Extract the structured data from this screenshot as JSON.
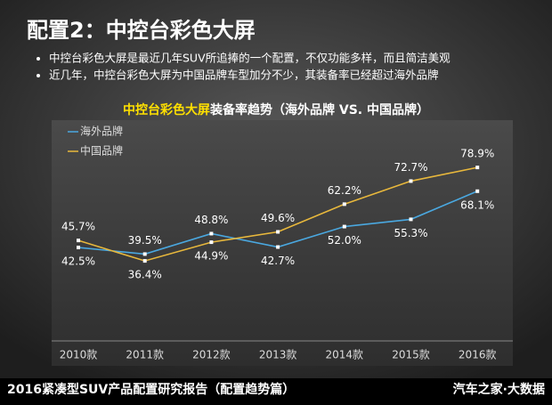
{
  "header": {
    "title": "配置2：中控台彩色大屏",
    "bullets": [
      "中控台彩色大屏是最近几年SUV所追捧的一个配置，不仅功能多样，而且简洁美观",
      "近几年，中控台彩色大屏为中国品牌车型加分不少，其装备率已经超过海外品牌"
    ]
  },
  "chart_data": {
    "type": "line",
    "title_highlight": "中控台彩色大屏",
    "title": "装备率趋势（海外品牌 VS. 中国品牌）",
    "categories": [
      "2010款",
      "2011款",
      "2012款",
      "2013款",
      "2014款",
      "2015款",
      "2016款"
    ],
    "series": [
      {
        "name": "海外品牌",
        "color": "#4aa8e0",
        "values": [
          42.5,
          39.5,
          48.8,
          42.7,
          52,
          55.3,
          68.1
        ],
        "value_labels": [
          "42.5%",
          "39.5%",
          "48.8%",
          "42.7%",
          "52.0%",
          "55.3%",
          "68.1%"
        ]
      },
      {
        "name": "中国品牌",
        "color": "#e8b83c",
        "values": [
          45.7,
          36.4,
          44.9,
          49.6,
          62.2,
          72.7,
          78.9
        ],
        "value_labels": [
          "45.7%",
          "36.4%",
          "44.9%",
          "49.6%",
          "62.2%",
          "72.7%",
          "78.9%"
        ]
      }
    ],
    "ylim": [
      0,
      100
    ],
    "legend": "top-left"
  },
  "footer": {
    "left": "2016紧凑型SUV产品配置研究报告（配置趋势篇）",
    "right": "汽车之家·大数据"
  }
}
